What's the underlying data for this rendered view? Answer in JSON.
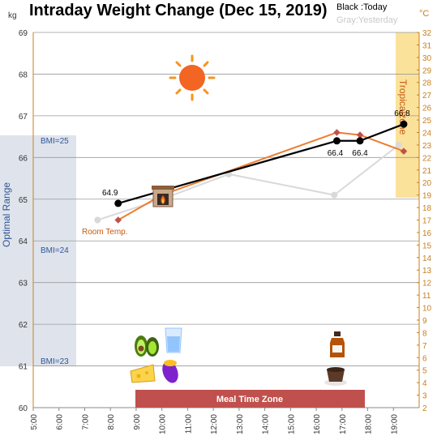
{
  "chart_data": {
    "type": "line",
    "title": "Intraday Weight Change (Dec 15, 2019)",
    "legend": {
      "today": "Black :Today",
      "yesterday": "Gray:Yesterday",
      "placement": "top-right"
    },
    "y_unit": "kg",
    "y2_unit": "°C",
    "ylim": [
      60,
      69
    ],
    "y_ticks": [
      "60",
      "61",
      "62",
      "63",
      "64",
      "65",
      "66",
      "67",
      "68",
      "69"
    ],
    "y2lim": [
      2,
      32
    ],
    "y2_ticks": [
      "2",
      "3",
      "4",
      "5",
      "6",
      "7",
      "8",
      "9",
      "10",
      "11",
      "12",
      "13",
      "14",
      "15",
      "16",
      "17",
      "18",
      "19",
      "20",
      "21",
      "22",
      "23",
      "24",
      "25",
      "26",
      "27",
      "28",
      "29",
      "30",
      "31",
      "32"
    ],
    "xlim": [
      5,
      20
    ],
    "x_ticks": [
      "5:00",
      "6:00",
      "7:00",
      "8:00",
      "9:00",
      "10:00",
      "11:00",
      "12:00",
      "13:00",
      "14:00",
      "15:00",
      "16:00",
      "17:00",
      "18:00",
      "19:00"
    ],
    "grid": true,
    "series": [
      {
        "name": "Today",
        "color": "#000000",
        "x": [
          8.3,
          10.0,
          16.8,
          17.7,
          19.4
        ],
        "y": [
          64.9,
          65.2,
          66.4,
          66.4,
          66.8
        ],
        "labels": [
          "64.9",
          "",
          "66.4",
          "66.4",
          "66.8"
        ]
      },
      {
        "name": "Yesterday",
        "color": "#d9d9d9",
        "x": [
          7.5,
          10.0,
          12.6,
          16.7,
          19.2
        ],
        "y": [
          64.5,
          65.0,
          65.6,
          65.1,
          66.3
        ],
        "labels": []
      },
      {
        "name": "Temperature",
        "axis": "y2",
        "color": "#ed7d31",
        "x": [
          8.3,
          10.0,
          16.8,
          17.7,
          19.4
        ],
        "y": [
          17,
          19,
          24,
          23.8,
          22.5
        ],
        "labels": []
      }
    ],
    "annotations": {
      "optimal_range": "Optimal Range",
      "bmi_25": "BMI=25",
      "bmi_24": "BMI=24",
      "bmi_23": "BMI=23",
      "room_temp": "Room Temp.",
      "tropical_zone": "Tropicalzone",
      "meal_zone": "Meal Time Zone"
    },
    "colors": {
      "optimal_band": "#dfe4ec",
      "tropical_band": "#fbe29b",
      "meal_band": "#c0504d",
      "right_axis": "#c87f1a"
    },
    "icons": [
      "sun-icon",
      "fireplace-icon",
      "avocado-icon",
      "water-glass-icon",
      "cheese-icon",
      "sweet-potato-icon",
      "liquor-bottle-icon",
      "coffee-cup-icon"
    ]
  }
}
